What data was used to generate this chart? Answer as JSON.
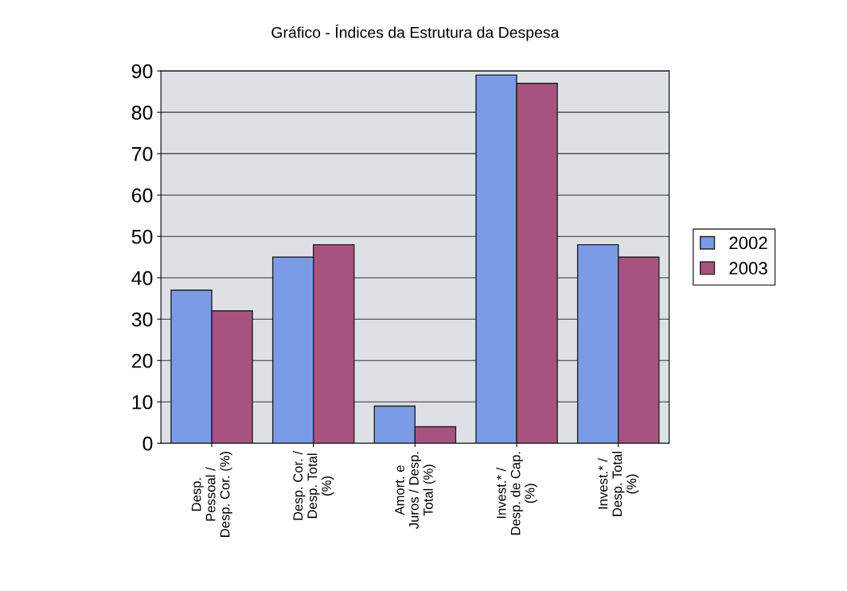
{
  "chart_data": {
    "type": "bar",
    "title": "Gráfico - Índices da Estrutura da Despesa",
    "categories": [
      "Desp.\nPessoal /\nDesp. Cor. (%)",
      "Desp. Cor. /\nDesp. Total\n(%)",
      "Amort. e\nJuros / Desp.\nTotal (%)",
      "Invest.* /\nDesp. de Cap.\n(%)",
      "Invest.* /\nDesp. Total\n(%)"
    ],
    "series": [
      {
        "name": "2002",
        "color": "#7b9be6",
        "values": [
          37,
          45,
          9,
          89,
          48
        ]
      },
      {
        "name": "2003",
        "color": "#a8527f",
        "values": [
          32,
          48,
          4,
          87,
          45
        ]
      }
    ],
    "ylim": [
      0,
      90
    ],
    "yticks": [
      0,
      10,
      20,
      30,
      40,
      50,
      60,
      70,
      80,
      90
    ],
    "grid": "y",
    "legend": "right"
  }
}
